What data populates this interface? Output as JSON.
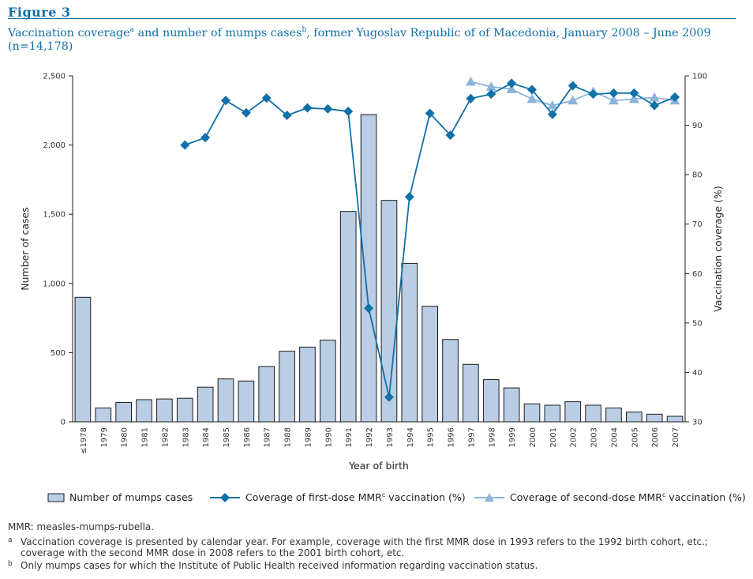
{
  "figure_label": "Figure 3",
  "caption": {
    "part1": "Vaccination coverage",
    "sup_a": "a",
    "part2": " and number of mumps cases",
    "sup_b": "b",
    "part3": ", former Yugoslav Republic of of Macedonia, January 2008 – June 2009 (n=14,178)"
  },
  "legend": {
    "bars": "Number of mumps cases",
    "first": "Coverage of first-dose MMR",
    "first_sup": "c",
    "first_tail": " vaccination (%)",
    "second": "Coverage of second-dose MMR",
    "second_sup": "c",
    "second_tail": " vaccination (%)"
  },
  "notes": {
    "abbrev": "MMR: measles-mumps-rubella.",
    "a_mark": "a",
    "a_text": "Vaccination coverage is presented by calendar year. For example, coverage with the first MMR dose in 1993 refers to the 1992 birth cohort, etc.; coverage with the second MMR dose in 2008 refers to the 2001 birth cohort, etc.",
    "b_mark": "b",
    "b_text": "Only mumps cases for which the Institute of Public Health received information regarding vaccination status."
  },
  "colors": {
    "bar_fill": "#b9cde5",
    "bar_stroke": "#1c1c1c",
    "first_dose": "#1070a8",
    "second_dose": "#8cb3d9",
    "axis": "#1c1c1c",
    "title": "#0f6fa6"
  },
  "chart_data": {
    "type": "bar",
    "categories": [
      "≤1978",
      "1979",
      "1980",
      "1981",
      "1982",
      "1983",
      "1984",
      "1985",
      "1986",
      "1987",
      "1988",
      "1989",
      "1990",
      "1991",
      "1992",
      "1993",
      "1994",
      "1995",
      "1996",
      "1997",
      "1998",
      "1999",
      "2000",
      "2001",
      "2002",
      "2003",
      "2004",
      "2005",
      "2006",
      "2007"
    ],
    "xlabel": "Year of birth",
    "ylabel": "Number of cases",
    "y2label": "Vaccination coverage (%)",
    "ylim": [
      0,
      2500
    ],
    "y2lim": [
      30,
      100
    ],
    "yticks": [
      0,
      500,
      1000,
      1500,
      2000,
      2500
    ],
    "yticklabels": [
      "0",
      "500",
      "1,000",
      "1,500",
      "2,000",
      "2,500"
    ],
    "y2ticks": [
      30,
      40,
      50,
      60,
      70,
      80,
      90,
      100
    ],
    "grid": false,
    "legend_position": "bottom",
    "series": [
      {
        "name": "Number of mumps cases",
        "kind": "bar",
        "axis": "left",
        "values": [
          900,
          100,
          140,
          160,
          165,
          170,
          250,
          310,
          295,
          400,
          510,
          540,
          590,
          1520,
          2220,
          1600,
          1145,
          835,
          595,
          415,
          305,
          245,
          130,
          120,
          145,
          120,
          100,
          70,
          55,
          40
        ]
      },
      {
        "name": "Coverage of first-dose MMR vaccination (%)",
        "kind": "line",
        "axis": "right",
        "marker": "diamond",
        "values": [
          null,
          null,
          null,
          null,
          null,
          86,
          87.5,
          95,
          92.5,
          95.5,
          92,
          93.5,
          93.3,
          92.8,
          53,
          35,
          75.5,
          92.4,
          88,
          95.4,
          96.3,
          98.5,
          97.2,
          92.2,
          98,
          96.3,
          96.5,
          96.5,
          94,
          95.7
        ]
      },
      {
        "name": "Coverage of second-dose MMR vaccination (%)",
        "kind": "line",
        "axis": "right",
        "marker": "triangle",
        "values": [
          null,
          null,
          null,
          null,
          null,
          null,
          null,
          null,
          null,
          null,
          null,
          null,
          null,
          null,
          null,
          null,
          null,
          null,
          null,
          98.8,
          97.8,
          97.3,
          95.3,
          94,
          95,
          96.8,
          95,
          95.3,
          95.6,
          95
        ]
      }
    ]
  }
}
